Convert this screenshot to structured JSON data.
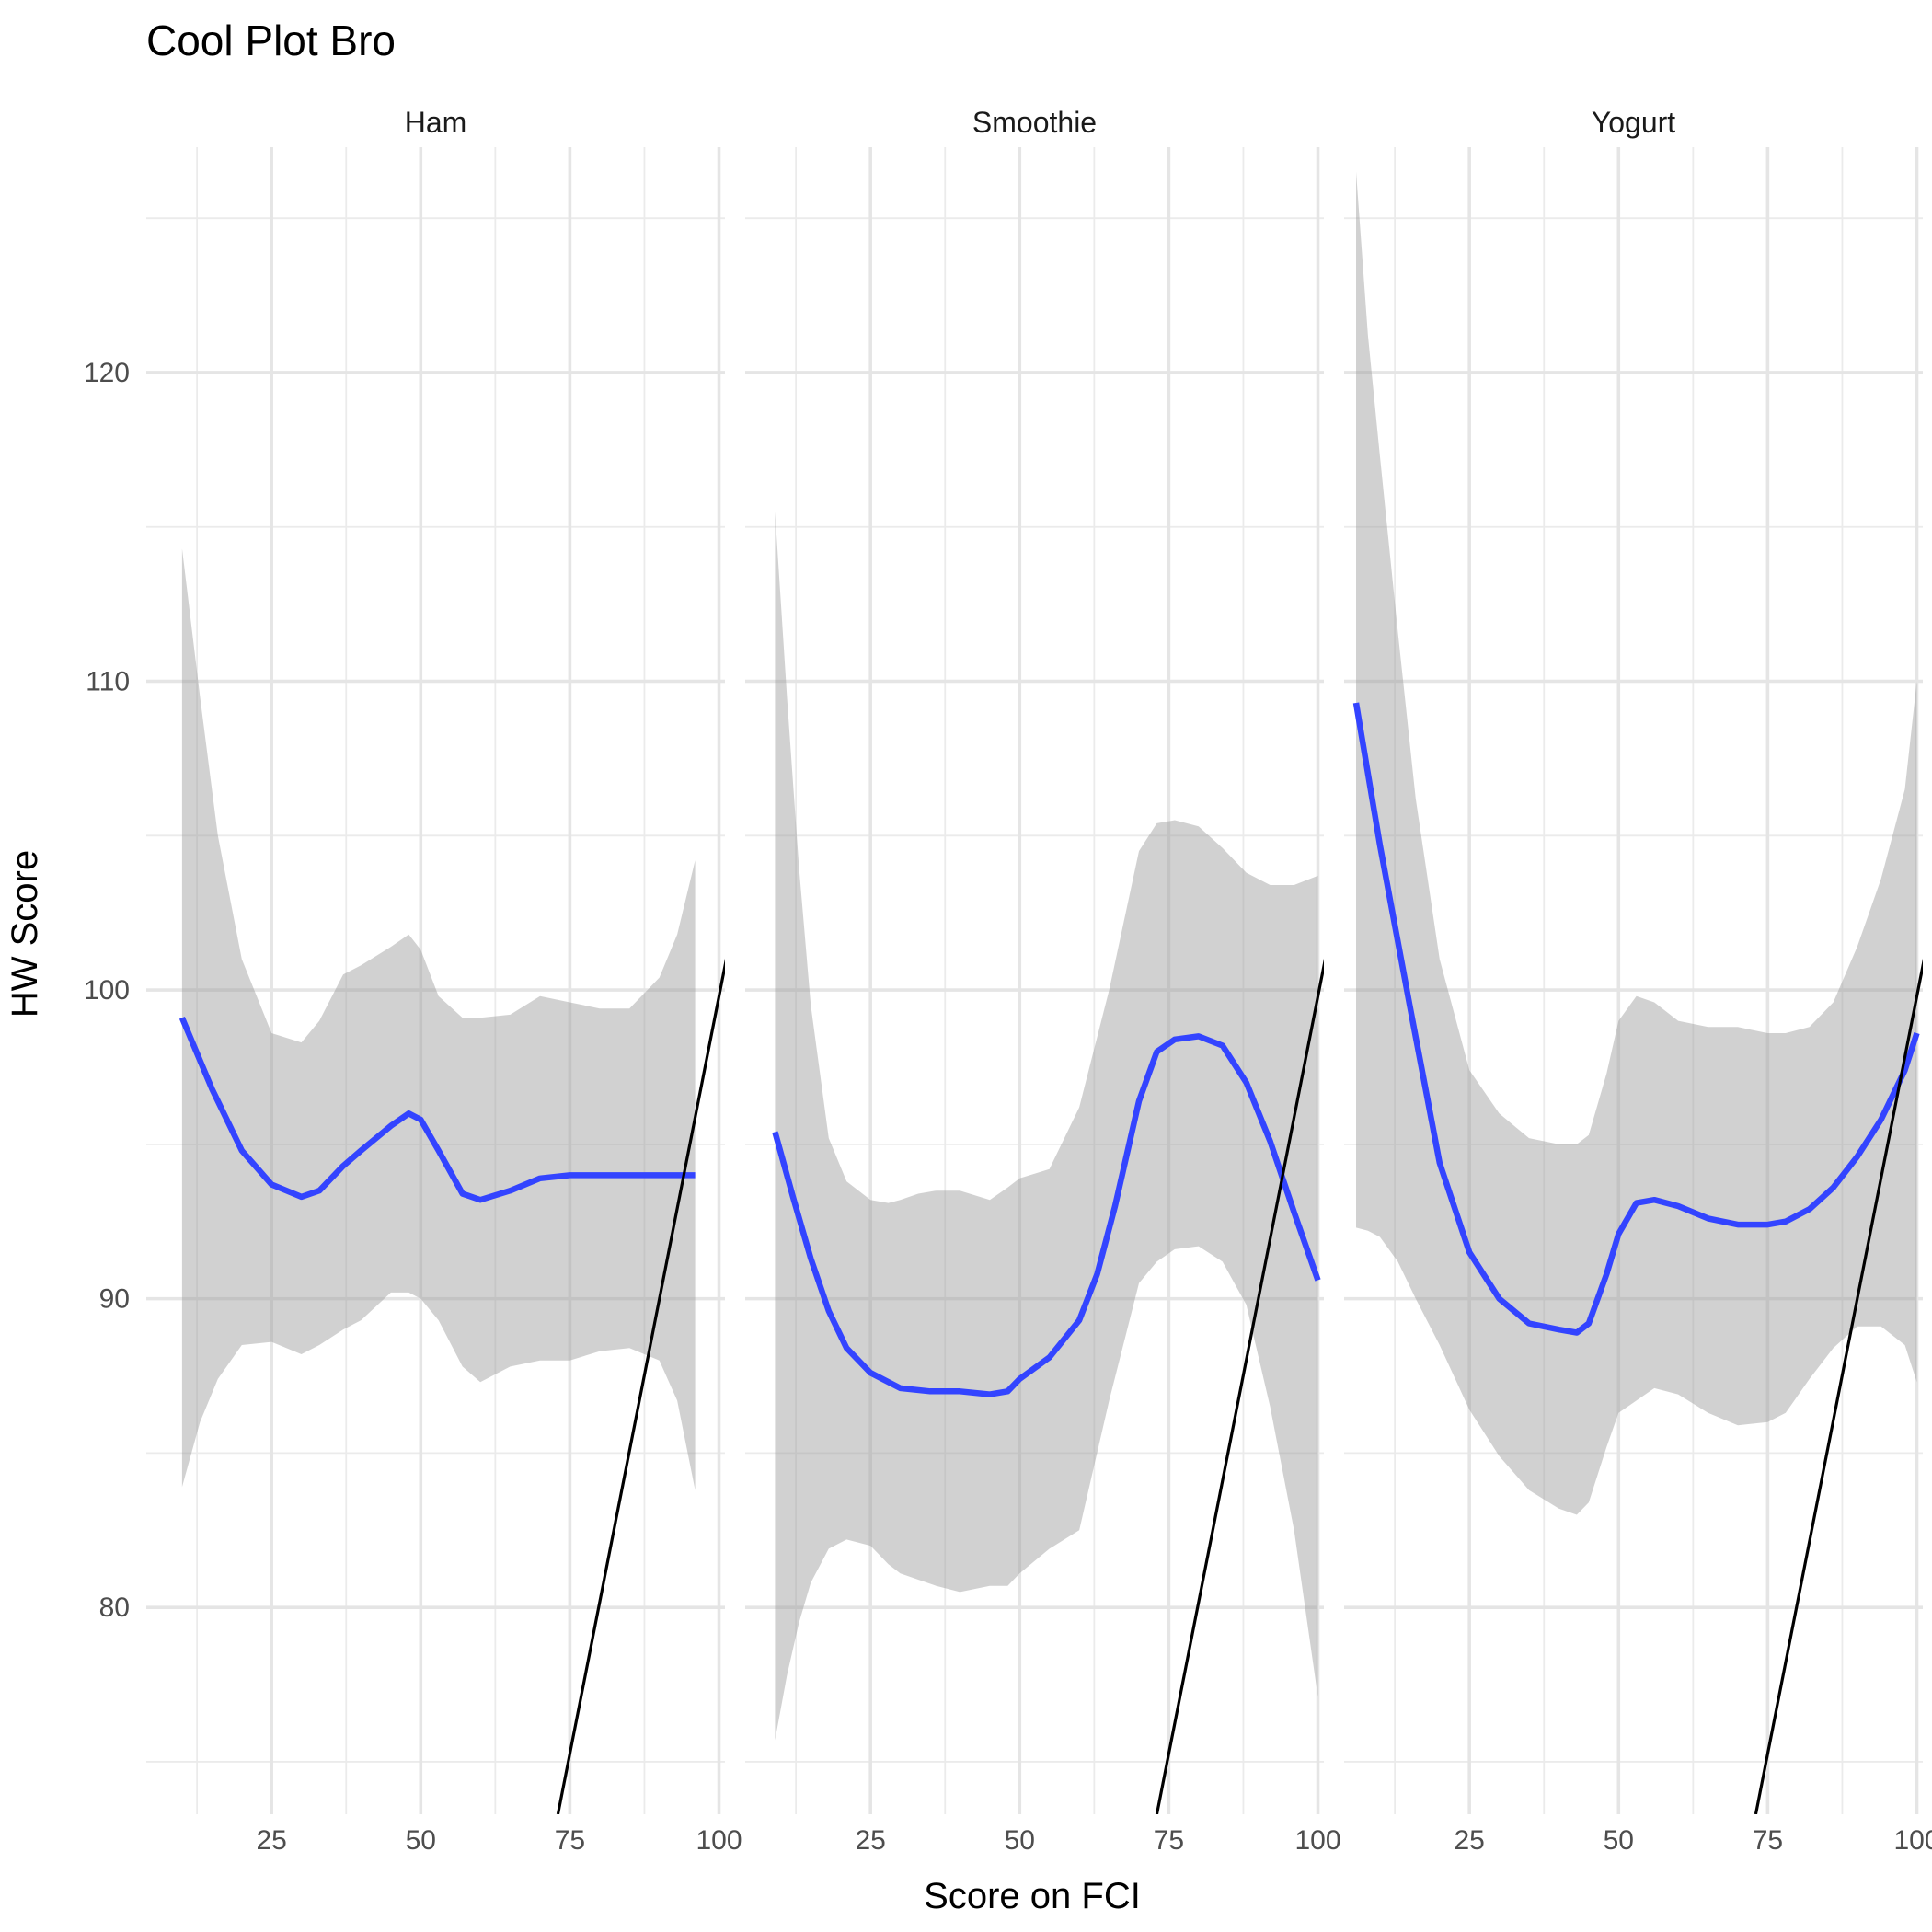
{
  "chart_data": {
    "type": "line",
    "title": "Cool Plot Bro",
    "xlabel": "Score on FCI",
    "ylabel": "HW Score",
    "xlim": [
      4,
      101
    ],
    "ylim": [
      73.3,
      127.3
    ],
    "x_ticks": [
      25,
      50,
      75,
      100
    ],
    "y_ticks": [
      80,
      90,
      100,
      110,
      120
    ],
    "grid": true,
    "colors": {
      "smooth": "#3344ff",
      "band": "#999999",
      "reference_line": "#000000"
    },
    "reference_line": {
      "x": [
        73,
        105
      ],
      "y": [
        73.3,
        104.7
      ]
    },
    "facets": [
      {
        "name": "Ham",
        "smooth": {
          "x": [
            10,
            15,
            20,
            25,
            30,
            33,
            37,
            40,
            45,
            48,
            50,
            53,
            57,
            60,
            65,
            70,
            75,
            80,
            85,
            90,
            96
          ],
          "y": [
            99.1,
            96.8,
            94.8,
            93.7,
            93.3,
            93.5,
            94.3,
            94.8,
            95.6,
            96.0,
            95.8,
            94.8,
            93.4,
            93.2,
            93.5,
            93.9,
            94.0,
            94.0,
            94.0,
            94.0,
            94.0
          ]
        },
        "band": {
          "x": [
            10,
            13,
            16,
            20,
            25,
            30,
            33,
            37,
            40,
            45,
            48,
            50,
            53,
            57,
            60,
            65,
            70,
            75,
            80,
            85,
            90,
            93,
            96
          ],
          "upper": [
            114.3,
            109.5,
            105.0,
            101.0,
            98.6,
            98.3,
            99.0,
            100.5,
            100.8,
            101.4,
            101.8,
            101.3,
            99.8,
            99.1,
            99.1,
            99.2,
            99.8,
            99.6,
            99.4,
            99.4,
            100.4,
            101.8,
            104.2
          ],
          "lower": [
            83.9,
            86.0,
            87.4,
            88.5,
            88.6,
            88.2,
            88.5,
            89.0,
            89.3,
            90.2,
            90.2,
            90.0,
            89.3,
            87.8,
            87.3,
            87.8,
            88.0,
            88.0,
            88.3,
            88.4,
            88.0,
            86.7,
            83.8
          ]
        }
      },
      {
        "name": "Smoothie",
        "smooth": {
          "x": [
            9,
            12,
            15,
            18,
            21,
            25,
            30,
            35,
            40,
            45,
            48,
            50,
            55,
            60,
            63,
            66,
            70,
            73,
            76,
            80,
            84,
            88,
            92,
            96,
            100
          ],
          "y": [
            95.4,
            93.3,
            91.3,
            89.6,
            88.4,
            87.6,
            87.1,
            87.0,
            87.0,
            86.9,
            87.0,
            87.4,
            88.1,
            89.3,
            90.8,
            93.0,
            96.4,
            98.0,
            98.4,
            98.5,
            98.2,
            97.0,
            95.1,
            92.8,
            90.6
          ]
        },
        "band": {
          "x": [
            9,
            11,
            13,
            15,
            18,
            21,
            25,
            28,
            30,
            33,
            36,
            40,
            45,
            48,
            50,
            55,
            60,
            65,
            70,
            73,
            76,
            80,
            84,
            88,
            92,
            96,
            100
          ],
          "upper": [
            115.5,
            109.5,
            104.0,
            99.5,
            95.2,
            93.8,
            93.2,
            93.1,
            93.2,
            93.4,
            93.5,
            93.5,
            93.2,
            93.6,
            93.9,
            94.2,
            96.2,
            100.0,
            104.5,
            105.4,
            105.5,
            105.3,
            104.6,
            103.8,
            103.4,
            103.4,
            103.7
          ],
          "lower": [
            75.7,
            77.8,
            79.5,
            80.8,
            81.9,
            82.2,
            82.0,
            81.4,
            81.1,
            80.9,
            80.7,
            80.5,
            80.7,
            80.7,
            81.1,
            81.9,
            82.5,
            86.7,
            90.5,
            91.2,
            91.6,
            91.7,
            91.2,
            89.8,
            86.5,
            82.5,
            77.1
          ]
        }
      },
      {
        "name": "Yogurt",
        "smooth": {
          "x": [
            6,
            10,
            15,
            20,
            25,
            30,
            35,
            40,
            43,
            45,
            48,
            50,
            53,
            56,
            60,
            65,
            70,
            75,
            78,
            82,
            86,
            90,
            94,
            98,
            100
          ],
          "y": [
            109.3,
            104.7,
            99.5,
            94.4,
            91.5,
            90.0,
            89.2,
            89.0,
            88.9,
            89.2,
            90.8,
            92.1,
            93.1,
            93.2,
            93.0,
            92.6,
            92.4,
            92.4,
            92.5,
            92.9,
            93.6,
            94.6,
            95.8,
            97.4,
            98.6
          ]
        },
        "band": {
          "x": [
            6,
            8,
            10,
            13,
            16,
            20,
            25,
            30,
            35,
            40,
            43,
            45,
            48,
            50,
            53,
            56,
            60,
            65,
            70,
            75,
            78,
            82,
            86,
            90,
            94,
            98,
            100
          ],
          "upper": [
            126.5,
            121.2,
            117.3,
            111.6,
            106.2,
            101.0,
            97.4,
            96.0,
            95.2,
            95.0,
            95.0,
            95.3,
            97.3,
            99.0,
            99.8,
            99.6,
            99.0,
            98.8,
            98.8,
            98.6,
            98.6,
            98.8,
            99.6,
            101.4,
            103.6,
            106.5,
            110.0
          ],
          "lower": [
            92.3,
            92.2,
            92.0,
            91.2,
            90.0,
            88.5,
            86.4,
            84.9,
            83.8,
            83.2,
            83.0,
            83.4,
            85.2,
            86.3,
            86.7,
            87.1,
            86.9,
            86.3,
            85.9,
            86.0,
            86.3,
            87.4,
            88.4,
            89.1,
            89.1,
            88.5,
            87.3
          ]
        }
      }
    ]
  }
}
